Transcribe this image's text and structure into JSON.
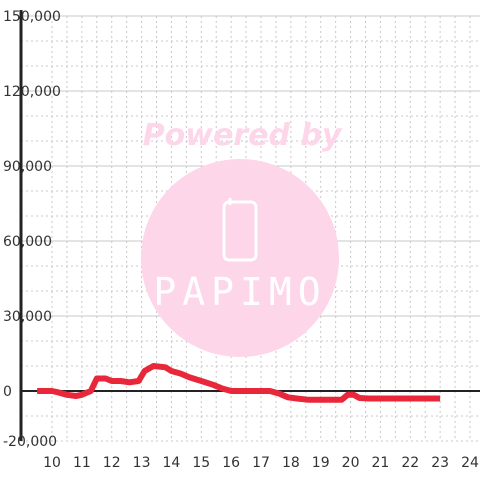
{
  "watermark": {
    "powered_by": "Powered by",
    "brand": "PAPIMO",
    "color": "#fdd6ea",
    "text_color": "#ffffff",
    "icon": "phone-icon"
  },
  "colors": {
    "line": "#e8283a",
    "major_grid": "#c8c8c8",
    "minor_grid": "#c8c8c8",
    "axis": "#222222",
    "zero_line": "#222222"
  },
  "chart_data": {
    "type": "line",
    "title": "",
    "xlabel": "",
    "ylabel": "",
    "xlim": [
      9.5,
      24.3
    ],
    "ylim": [
      -20000,
      150000
    ],
    "x_ticks": [
      10,
      11,
      12,
      13,
      14,
      15,
      16,
      17,
      18,
      19,
      20,
      21,
      22,
      23,
      24
    ],
    "y_ticks": [
      150000,
      120000,
      90000,
      60000,
      30000,
      0,
      -20000
    ],
    "y_tick_labels": [
      "150,000",
      "120,000",
      "90,000",
      "60,000",
      "30,000",
      "0",
      "-20,000"
    ],
    "grid": true,
    "series": [
      {
        "x": [
          9.5,
          10.0,
          10.2,
          10.5,
          10.8,
          11.0,
          11.3,
          11.5,
          11.8,
          12.0,
          12.3,
          12.6,
          12.9,
          13.1,
          13.4,
          13.8,
          14.0,
          14.3,
          14.6,
          15.0,
          15.4,
          15.7,
          16.0,
          16.3,
          16.7,
          17.0,
          17.3,
          17.6,
          17.9,
          18.2,
          18.6,
          19.0,
          19.4,
          19.7,
          19.9,
          20.1,
          20.3,
          20.6,
          21.0,
          21.5,
          22.0,
          22.5,
          23.0
        ],
        "y": [
          0,
          0,
          -500,
          -1500,
          -2000,
          -1500,
          0,
          5000,
          5000,
          4000,
          4000,
          3500,
          4000,
          8000,
          10000,
          9500,
          8000,
          7000,
          5500,
          4000,
          2500,
          1000,
          0,
          0,
          0,
          0,
          0,
          -1000,
          -2500,
          -3000,
          -3500,
          -3500,
          -3500,
          -3500,
          -1500,
          -1500,
          -2800,
          -3000,
          -3000,
          -3000,
          -3000,
          -3000,
          -3000
        ]
      }
    ]
  }
}
